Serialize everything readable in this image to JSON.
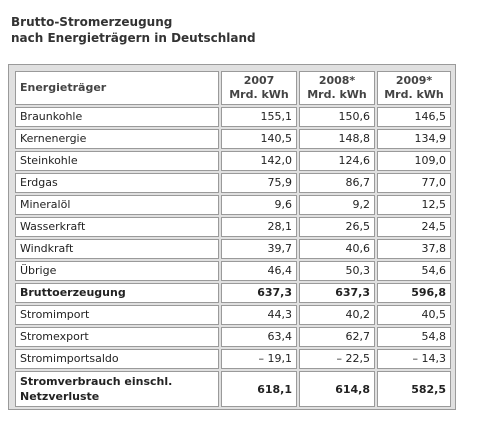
{
  "title": {
    "line1": "Brutto-Stromerzeugung",
    "line2": "nach Energieträgern in Deutschland"
  },
  "table": {
    "header": {
      "label": "Energieträger",
      "columns": [
        {
          "year": "2007",
          "unit": "Mrd. kWh"
        },
        {
          "year": "2008*",
          "unit": "Mrd. kWh"
        },
        {
          "year": "2009*",
          "unit": "Mrd. kWh"
        }
      ]
    },
    "rows": [
      {
        "label": "Braunkohle",
        "values": [
          "155,1",
          "150,6",
          "146,5"
        ]
      },
      {
        "label": "Kernenergie",
        "values": [
          "140,5",
          "148,8",
          "134,9"
        ]
      },
      {
        "label": "Steinkohle",
        "values": [
          "142,0",
          "124,6",
          "109,0"
        ]
      },
      {
        "label": "Erdgas",
        "values": [
          "75,9",
          "86,7",
          "77,0"
        ]
      },
      {
        "label": "Mineralöl",
        "values": [
          "9,6",
          "9,2",
          "12,5"
        ]
      },
      {
        "label": "Wasserkraft",
        "values": [
          "28,1",
          "26,5",
          "24,5"
        ]
      },
      {
        "label": "Windkraft",
        "values": [
          "39,7",
          "40,6",
          "37,8"
        ]
      },
      {
        "label": "Übrige",
        "values": [
          "46,4",
          "50,3",
          "54,6"
        ]
      },
      {
        "label": "Bruttoerzeugung",
        "values": [
          "637,3",
          "637,3",
          "596,8"
        ]
      },
      {
        "label": "Stromimport",
        "values": [
          "44,3",
          "40,2",
          "40,5"
        ]
      },
      {
        "label": "Stromexport",
        "values": [
          "63,4",
          "62,7",
          "54,8"
        ]
      },
      {
        "label": "Stromimportsaldo",
        "values": [
          "– 19,1",
          "– 22,5",
          "– 14,3"
        ]
      },
      {
        "label": "Stromverbrauch einschl. Netzverluste",
        "values": [
          "618,1",
          "614,8",
          "582,5"
        ]
      }
    ]
  }
}
